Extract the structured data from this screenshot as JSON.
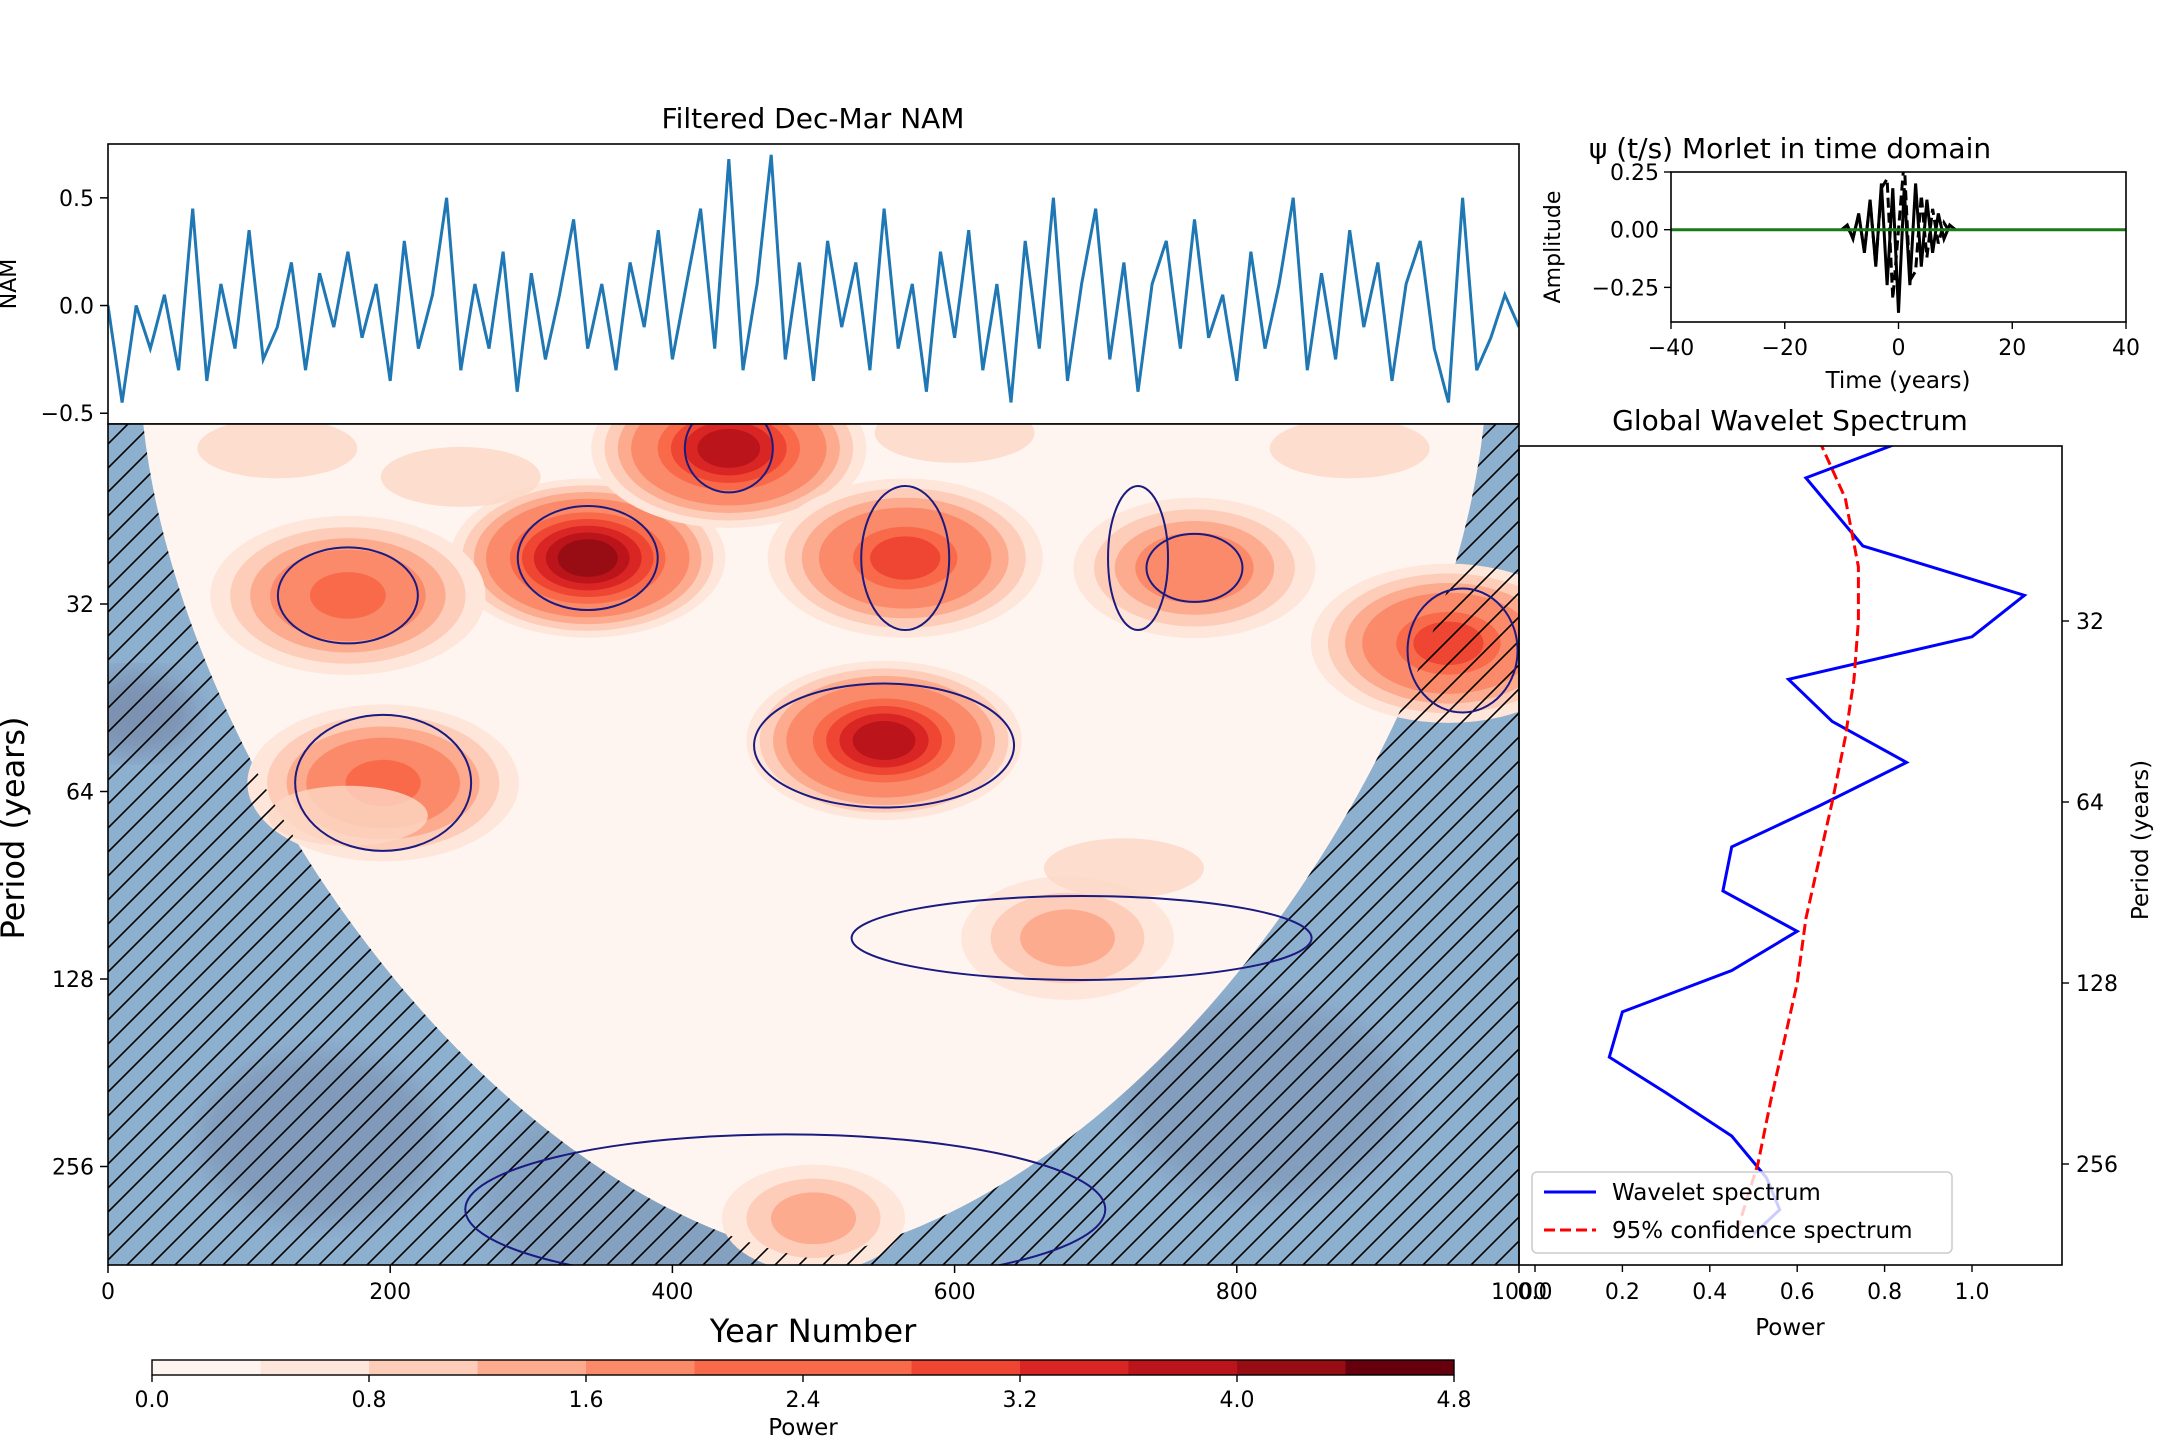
{
  "chart_data": [
    {
      "type": "line",
      "title": "Filtered Dec-Mar NAM",
      "ylabel": "NAM",
      "xlim": [
        0,
        1000
      ],
      "ylim": [
        -0.55,
        0.75
      ],
      "yticks": [
        0.5,
        0.0,
        -0.5
      ],
      "ytick_labels": [
        "0.5",
        "0.0",
        "−0.5"
      ],
      "series": [
        {
          "color": "#1f77b4",
          "x": [
            0,
            10,
            20,
            30,
            40,
            50,
            60,
            70,
            80,
            90,
            100,
            110,
            120,
            130,
            140,
            150,
            160,
            170,
            180,
            190,
            200,
            210,
            220,
            230,
            240,
            250,
            260,
            270,
            280,
            290,
            300,
            310,
            320,
            330,
            340,
            350,
            360,
            370,
            380,
            390,
            400,
            410,
            420,
            430,
            440,
            450,
            460,
            470,
            480,
            490,
            500,
            510,
            520,
            530,
            540,
            550,
            560,
            570,
            580,
            590,
            600,
            610,
            620,
            630,
            640,
            650,
            660,
            670,
            680,
            690,
            700,
            710,
            720,
            730,
            740,
            750,
            760,
            770,
            780,
            790,
            800,
            810,
            820,
            830,
            840,
            850,
            860,
            870,
            880,
            890,
            900,
            910,
            920,
            930,
            940,
            950,
            960,
            970,
            980,
            990,
            1000
          ],
          "y": [
            0.0,
            -0.45,
            0.0,
            -0.2,
            0.05,
            -0.3,
            0.45,
            -0.35,
            0.1,
            -0.2,
            0.35,
            -0.25,
            -0.1,
            0.2,
            -0.3,
            0.15,
            -0.1,
            0.25,
            -0.15,
            0.1,
            -0.35,
            0.3,
            -0.2,
            0.05,
            0.5,
            -0.3,
            0.1,
            -0.2,
            0.25,
            -0.4,
            0.15,
            -0.25,
            0.05,
            0.4,
            -0.2,
            0.1,
            -0.3,
            0.2,
            -0.1,
            0.35,
            -0.25,
            0.1,
            0.45,
            -0.2,
            0.68,
            -0.3,
            0.1,
            0.7,
            -0.25,
            0.2,
            -0.35,
            0.3,
            -0.1,
            0.2,
            -0.3,
            0.45,
            -0.2,
            0.1,
            -0.4,
            0.25,
            -0.15,
            0.35,
            -0.3,
            0.1,
            -0.45,
            0.3,
            -0.2,
            0.5,
            -0.35,
            0.1,
            0.45,
            -0.25,
            0.2,
            -0.4,
            0.1,
            0.3,
            -0.2,
            0.4,
            -0.15,
            0.05,
            -0.35,
            0.25,
            -0.2,
            0.1,
            0.5,
            -0.3,
            0.15,
            -0.25,
            0.35,
            -0.1,
            0.2,
            -0.35,
            0.1,
            0.3,
            -0.2,
            -0.45,
            0.5,
            -0.3,
            -0.15,
            0.05,
            -0.1
          ]
        }
      ]
    },
    {
      "type": "line",
      "title": "ψ (t/s) Morlet in time domain",
      "xlabel": "Time (years)",
      "ylabel": "Amplitude",
      "xlim": [
        -40,
        40
      ],
      "ylim": [
        -0.4,
        0.25
      ],
      "xticks": [
        -40,
        -20,
        0,
        20,
        40
      ],
      "xtick_labels": [
        "−40",
        "−20",
        "0",
        "20",
        "40"
      ],
      "yticks": [
        0.25,
        0.0,
        -0.25
      ],
      "ytick_labels": [
        "0.25",
        "0.00",
        "−0.25"
      ],
      "series": [
        {
          "style": "solid",
          "color": "#000000",
          "x": [
            -10,
            -9,
            -8,
            -7,
            -6,
            -5,
            -4,
            -3,
            -2,
            -1,
            0,
            1,
            2,
            3,
            4,
            5,
            6,
            7,
            8,
            9,
            10
          ],
          "y": [
            0,
            0.02,
            -0.04,
            0.07,
            -0.1,
            0.13,
            -0.16,
            0.2,
            -0.24,
            0.18,
            -0.36,
            0.18,
            -0.24,
            0.2,
            -0.16,
            0.13,
            -0.1,
            0.07,
            -0.04,
            0.02,
            0
          ]
        },
        {
          "style": "dashed",
          "color": "#000000",
          "x": [
            -9,
            -8,
            -7,
            -6,
            -5,
            -4,
            -3,
            -2,
            -1,
            0,
            1,
            2,
            3,
            4,
            5,
            6,
            7,
            8,
            9
          ],
          "y": [
            0.01,
            -0.03,
            0.06,
            -0.09,
            0.12,
            -0.15,
            0.18,
            0.22,
            -0.3,
            0.0,
            0.3,
            -0.22,
            -0.18,
            0.15,
            -0.12,
            0.09,
            -0.06,
            0.03,
            -0.01
          ]
        },
        {
          "style": "solid",
          "color": "#1a7a1a",
          "x": [
            -40,
            40
          ],
          "y": [
            0,
            0
          ]
        }
      ]
    },
    {
      "type": "heatmap",
      "xlabel": "Year Number",
      "ylabel": "Period (years)",
      "xlim": [
        0,
        1000
      ],
      "xticks": [
        0,
        200,
        400,
        600,
        800,
        1000
      ],
      "xtick_labels": [
        "0",
        "200",
        "400",
        "600",
        "800",
        "1000"
      ],
      "yticks": [
        32,
        64,
        128,
        256
      ],
      "ytick_labels": [
        "32",
        "64",
        "128",
        "256"
      ],
      "log_y": true,
      "colormap": "Reds",
      "colorbar": {
        "label": "Power",
        "ticks": [
          0.0,
          0.8,
          1.6,
          2.4,
          3.2,
          4.0,
          4.8
        ],
        "tick_labels": [
          "0.0",
          "0.8",
          "1.6",
          "2.4",
          "3.2",
          "4.0",
          "4.8"
        ],
        "colors": [
          "#fff5f0",
          "#fee6da",
          "#fdcdb9",
          "#fcab8f",
          "#fb8a6a",
          "#f96a4b",
          "#ef4533",
          "#d92523",
          "#bb141a",
          "#980c13",
          "#67000d"
        ]
      },
      "cone_of_influence_color": "#8eb0cf",
      "blobs": [
        {
          "year": 340,
          "period": 27,
          "power": 4.0
        },
        {
          "year": 550,
          "period": 53,
          "power": 3.4
        },
        {
          "year": 440,
          "period": 18,
          "power": 3.6
        },
        {
          "year": 170,
          "period": 31,
          "power": 2.3
        },
        {
          "year": 195,
          "period": 62,
          "power": 2.2
        },
        {
          "year": 565,
          "period": 27,
          "power": 2.6
        },
        {
          "year": 770,
          "period": 28,
          "power": 1.8
        },
        {
          "year": 680,
          "period": 110,
          "power": 1.4
        },
        {
          "year": 950,
          "period": 37,
          "power": 2.7
        },
        {
          "year": 500,
          "period": 310,
          "power": 1.0
        }
      ]
    },
    {
      "type": "line",
      "title": "Global Wavelet Spectrum",
      "xlabel": "Power",
      "ylabel": "Period (years)",
      "xlim": [
        0,
        1.2
      ],
      "xticks": [
        0,
        0.2,
        0.4,
        0.6,
        0.8,
        1.0
      ],
      "xtick_labels": [
        "0.0",
        "0.2",
        "0.4",
        "0.6",
        "0.8",
        "1.0"
      ],
      "yticks": [
        32,
        64,
        128,
        256
      ],
      "ytick_labels": [
        "32",
        "64",
        "128",
        "256"
      ],
      "log_y": true,
      "legend_location": "lower-left",
      "series": [
        {
          "name": "Wavelet spectrum",
          "color": "#0000ff",
          "style": "solid",
          "period": [
            16,
            18.5,
            24,
            29,
            34,
            40,
            47,
            55,
            65,
            76,
            90,
            105,
            122,
            143,
            170,
            195,
            230,
            270,
            305,
            335
          ],
          "power": [
            0.85,
            0.62,
            0.75,
            1.12,
            1.0,
            0.58,
            0.68,
            0.85,
            0.65,
            0.45,
            0.43,
            0.6,
            0.45,
            0.2,
            0.17,
            0.3,
            0.45,
            0.53,
            0.56,
            0.5
          ]
        },
        {
          "name": "95% confidence spectrum",
          "color": "#ff0000",
          "style": "dashed",
          "period": [
            16,
            20,
            26,
            32,
            40,
            50,
            64,
            80,
            100,
            128,
            160,
            200,
            256,
            335
          ],
          "power": [
            0.65,
            0.71,
            0.74,
            0.74,
            0.73,
            0.71,
            0.68,
            0.65,
            0.62,
            0.6,
            0.57,
            0.54,
            0.51,
            0.46
          ]
        }
      ]
    }
  ]
}
